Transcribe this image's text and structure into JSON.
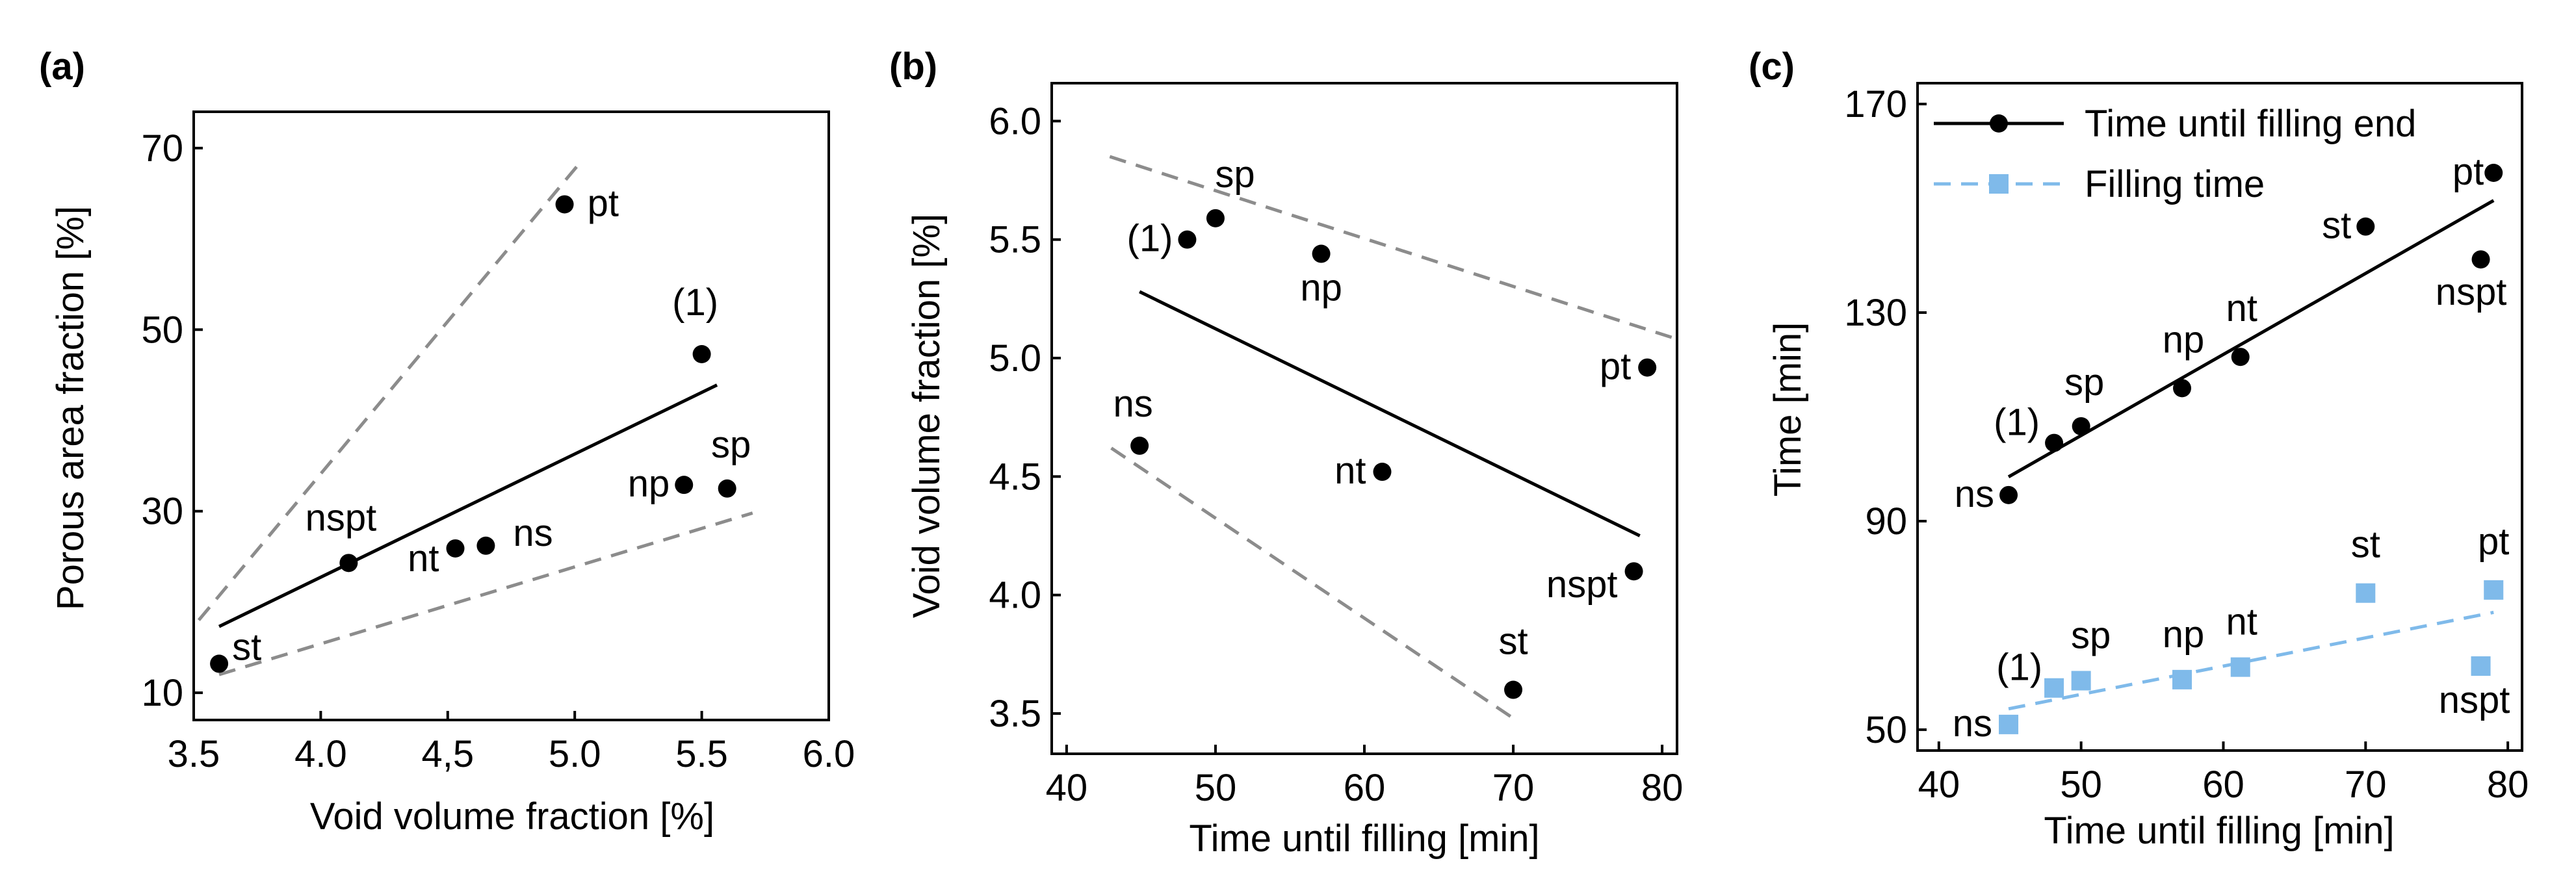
{
  "colors": {
    "axis": "#000000",
    "point_black": "#000000",
    "fit_black": "#000000",
    "bound_gray": "#8c8c8c",
    "series_blue": "#7fbaea"
  },
  "chart_data": [
    {
      "panel": "(a)",
      "type": "scatter",
      "xlabel": "Void volume fraction [%]",
      "ylabel": "Porous area fraction [%]",
      "xlim": [
        3.5,
        6.0
      ],
      "ylim": [
        7,
        74
      ],
      "xticks": [
        3.5,
        4.0,
        4.5,
        5.0,
        5.5,
        6.0
      ],
      "xtick_labels": [
        "3.5",
        "4.0",
        "4,5",
        "5.0",
        "5.5",
        "6.0"
      ],
      "yticks": [
        10,
        30,
        50,
        70
      ],
      "ytick_labels": [
        "10",
        "30",
        "50",
        "70"
      ],
      "points": [
        {
          "label": "st",
          "x": 3.6,
          "y": 13.2
        },
        {
          "label": "nspt",
          "x": 4.11,
          "y": 24.3
        },
        {
          "label": "nt",
          "x": 4.53,
          "y": 25.9
        },
        {
          "label": "ns",
          "x": 4.65,
          "y": 26.2
        },
        {
          "label": "pt",
          "x": 4.96,
          "y": 63.8
        },
        {
          "label": "(1)",
          "x": 5.5,
          "y": 47.3
        },
        {
          "label": "np",
          "x": 5.43,
          "y": 32.9
        },
        {
          "label": "sp",
          "x": 5.6,
          "y": 32.5
        }
      ],
      "fit_line": {
        "x": [
          3.6,
          5.56
        ],
        "y": [
          17.3,
          43.9
        ]
      },
      "bound_lines": [
        {
          "x": [
            3.52,
            5.03
          ],
          "y": [
            18.0,
            68.7
          ]
        },
        {
          "x": [
            3.6,
            5.7
          ],
          "y": [
            12.0,
            29.8
          ]
        }
      ]
    },
    {
      "panel": "(b)",
      "type": "scatter",
      "xlabel": "Time until filling [min]",
      "ylabel": "Void volume fraction [%]",
      "xlim": [
        39,
        81
      ],
      "ylim": [
        3.33,
        6.16
      ],
      "xticks": [
        40,
        50,
        60,
        70,
        80
      ],
      "xtick_labels": [
        "40",
        "50",
        "60",
        "70",
        "80"
      ],
      "yticks": [
        3.5,
        4.0,
        4.5,
        5.0,
        5.5,
        6.0
      ],
      "ytick_labels": [
        "3.5",
        "4.0",
        "4.5",
        "5.0",
        "5.5",
        "6.0"
      ],
      "points": [
        {
          "label": "(1)",
          "x": 48.1,
          "y": 5.5
        },
        {
          "label": "sp",
          "x": 50.0,
          "y": 5.59
        },
        {
          "label": "np",
          "x": 57.1,
          "y": 5.44
        },
        {
          "label": "ns",
          "x": 44.9,
          "y": 4.63
        },
        {
          "label": "nt",
          "x": 61.2,
          "y": 4.52
        },
        {
          "label": "pt",
          "x": 79.0,
          "y": 4.96
        },
        {
          "label": "nspt",
          "x": 78.1,
          "y": 4.1
        },
        {
          "label": "st",
          "x": 70.0,
          "y": 3.6
        }
      ],
      "fit_line": {
        "x": [
          44.9,
          78.5
        ],
        "y": [
          5.28,
          4.25
        ]
      },
      "bound_lines": [
        {
          "x": [
            42.9,
            81.0
          ],
          "y": [
            5.85,
            5.08
          ]
        },
        {
          "x": [
            43.0,
            70.0
          ],
          "y": [
            4.62,
            3.48
          ]
        }
      ]
    },
    {
      "panel": "(c)",
      "type": "scatter",
      "xlabel": "Time until filling [min]",
      "ylabel": "Time [min]",
      "xlim": [
        38.5,
        81
      ],
      "ylim": [
        46,
        174
      ],
      "xticks": [
        40,
        50,
        60,
        70,
        80
      ],
      "xtick_labels": [
        "40",
        "50",
        "60",
        "70",
        "80"
      ],
      "yticks": [
        50,
        90,
        130,
        170
      ],
      "ytick_labels": [
        "50",
        "90",
        "130",
        "170"
      ],
      "legend": [
        {
          "label": "Time until filling end",
          "style": "solid",
          "marker": "circle"
        },
        {
          "label": "Filling time",
          "style": "dashed",
          "marker": "square"
        }
      ],
      "series": [
        {
          "name": "Time until filling end",
          "points": [
            {
              "label": "ns",
              "x": 44.9,
              "y": 95.0
            },
            {
              "label": "(1)",
              "x": 48.1,
              "y": 105.0
            },
            {
              "label": "sp",
              "x": 50.0,
              "y": 108.2
            },
            {
              "label": "np",
              "x": 57.1,
              "y": 115.5
            },
            {
              "label": "nt",
              "x": 61.2,
              "y": 121.5
            },
            {
              "label": "st",
              "x": 70.0,
              "y": 146.5
            },
            {
              "label": "pt",
              "x": 79.0,
              "y": 156.8
            },
            {
              "label": "nspt",
              "x": 78.1,
              "y": 140.2
            }
          ],
          "fit_line": {
            "x": [
              44.9,
              79.0
            ],
            "y": [
              98.5,
              151.5
            ]
          }
        },
        {
          "name": "Filling time",
          "points": [
            {
              "label": "ns",
              "x": 44.9,
              "y": 51.0
            },
            {
              "label": "(1)",
              "x": 48.1,
              "y": 58.0
            },
            {
              "label": "sp",
              "x": 50.0,
              "y": 59.4
            },
            {
              "label": "np",
              "x": 57.1,
              "y": 59.6
            },
            {
              "label": "nt",
              "x": 61.2,
              "y": 62.0
            },
            {
              "label": "st",
              "x": 70.0,
              "y": 76.2
            },
            {
              "label": "pt",
              "x": 79.0,
              "y": 76.8
            },
            {
              "label": "nspt",
              "x": 78.1,
              "y": 62.2
            }
          ],
          "fit_line": {
            "x": [
              44.9,
              79.0
            ],
            "y": [
              54.0,
              72.5
            ]
          }
        }
      ]
    }
  ]
}
